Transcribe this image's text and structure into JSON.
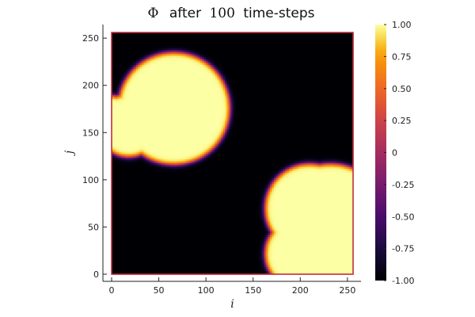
{
  "chart_data": {
    "type": "heatmap",
    "title": "Φ  after 100 time-steps",
    "title_parts": {
      "symbol": "Φ",
      "after": "after",
      "count": "100",
      "unit": "time-steps"
    },
    "xlabel": "i",
    "ylabel": "j",
    "xlim": [
      0,
      256
    ],
    "ylim": [
      0,
      256
    ],
    "xticks": [
      0,
      50,
      100,
      150,
      200,
      250
    ],
    "yticks": [
      0,
      50,
      100,
      150,
      200,
      250
    ],
    "colorbar": {
      "range": [
        -1,
        1
      ],
      "ticks": [
        -1,
        -0.75,
        -0.5,
        -0.25,
        0,
        0.25,
        0.5,
        0.75,
        1
      ],
      "tick_labels": [
        "-1.00",
        "-0.75",
        "-0.50",
        "-0.25",
        "0",
        "0.25",
        "0.50",
        "0.75",
        "1.00"
      ],
      "colormap": "inferno"
    },
    "grid": false,
    "regions": [
      {
        "name": "upper-left blob",
        "value": 1,
        "circles": [
          {
            "cx": 66,
            "cy": 176,
            "r": 60
          },
          {
            "cx": 18,
            "cy": 158,
            "r": 34
          },
          {
            "cx": 0,
            "cy": 160,
            "r": 30
          }
        ]
      },
      {
        "name": "lower-right blob",
        "value": 1,
        "circles": [
          {
            "cx": 223,
            "cy": 79,
            "r": 38
          },
          {
            "cx": 210,
            "cy": 70,
            "r": 48
          },
          {
            "cx": 232,
            "cy": 56,
            "r": 62
          },
          {
            "cx": 200,
            "cy": 22,
            "r": 38
          },
          {
            "cx": 232,
            "cy": 20,
            "r": 45
          }
        ]
      }
    ],
    "background_value": -1,
    "frame_color": "#c22c3d"
  }
}
